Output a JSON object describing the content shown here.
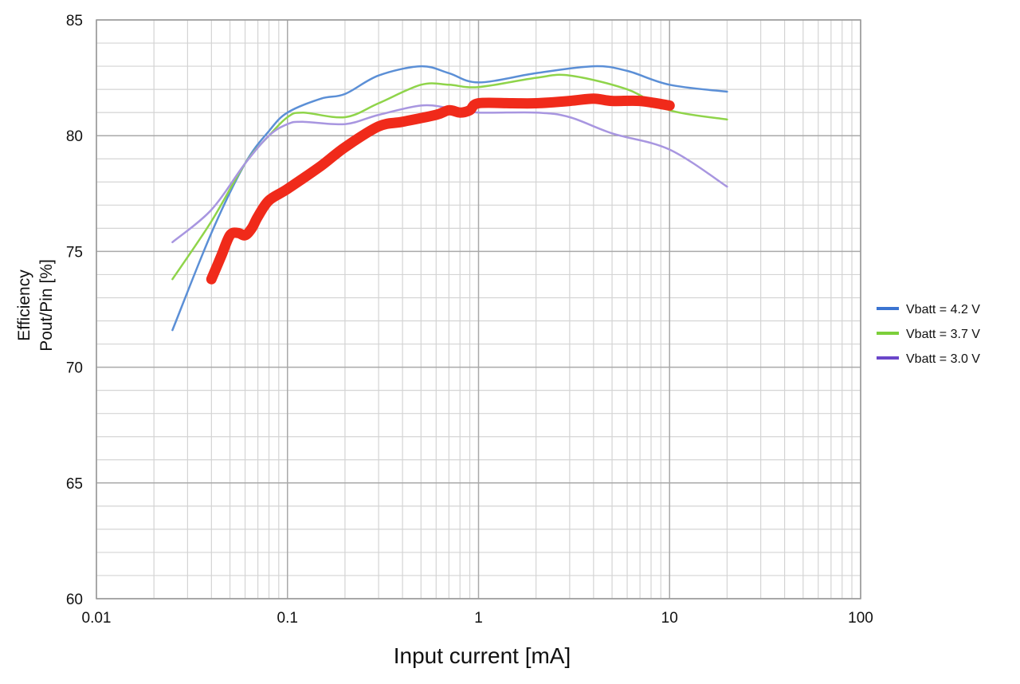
{
  "chart_data": {
    "type": "line",
    "xlabel": "Input current [mA]",
    "ylabel_lines": [
      "Efficiency",
      "Pout/Pin [%]"
    ],
    "xscale": "log",
    "xlim": [
      0.01,
      100
    ],
    "ylim": [
      60,
      85
    ],
    "grid": true,
    "legend_placement": "right",
    "x_ticks": [
      {
        "value": 0.01,
        "label": "0.01"
      },
      {
        "value": 0.1,
        "label": "0.1"
      },
      {
        "value": 1,
        "label": "1"
      },
      {
        "value": 10,
        "label": "10"
      },
      {
        "value": 100,
        "label": "100"
      }
    ],
    "y_ticks": [
      {
        "value": 60,
        "label": "60"
      },
      {
        "value": 65,
        "label": "65"
      },
      {
        "value": 70,
        "label": "70"
      },
      {
        "value": 75,
        "label": "75"
      },
      {
        "value": 80,
        "label": "80"
      },
      {
        "value": 85,
        "label": "85"
      }
    ],
    "series": [
      {
        "name": "Vbatt = 4.2 V",
        "color": "#5b8fd6",
        "legend_color": "#3b74d1",
        "x": [
          0.025,
          0.04,
          0.06,
          0.08,
          0.1,
          0.15,
          0.2,
          0.3,
          0.5,
          0.7,
          1,
          2,
          4,
          6,
          10,
          20
        ],
        "y": [
          71.6,
          75.8,
          78.8,
          80.2,
          81.0,
          81.6,
          81.8,
          82.6,
          83.0,
          82.7,
          82.3,
          82.7,
          83.0,
          82.8,
          82.2,
          81.9
        ]
      },
      {
        "name": "Vbatt = 3.7 V",
        "color": "#8fd44a",
        "legend_color": "#7ccf3a",
        "x": [
          0.025,
          0.04,
          0.06,
          0.08,
          0.1,
          0.12,
          0.2,
          0.3,
          0.5,
          0.7,
          1,
          2,
          3,
          6,
          10,
          20
        ],
        "y": [
          73.8,
          76.3,
          78.8,
          80.0,
          80.8,
          81.0,
          80.8,
          81.4,
          82.2,
          82.2,
          82.1,
          82.5,
          82.6,
          82.0,
          81.1,
          80.7
        ]
      },
      {
        "name": "Vbatt = 3.0 V",
        "color": "#a896e0",
        "legend_color": "#6a46c9",
        "x": [
          0.025,
          0.04,
          0.06,
          0.08,
          0.1,
          0.12,
          0.2,
          0.3,
          0.5,
          0.7,
          1,
          2,
          3,
          5,
          10,
          20
        ],
        "y": [
          75.4,
          76.8,
          78.8,
          80.0,
          80.5,
          80.6,
          80.5,
          80.9,
          81.3,
          81.2,
          81.0,
          81.0,
          80.8,
          80.1,
          79.4,
          77.8
        ]
      },
      {
        "color": "#f02a1a",
        "x": [
          0.04,
          0.045,
          0.05,
          0.055,
          0.06,
          0.065,
          0.07,
          0.08,
          0.1,
          0.15,
          0.2,
          0.3,
          0.4,
          0.6,
          0.7,
          0.8,
          0.9,
          1,
          1.5,
          2,
          3,
          4,
          5,
          7,
          10
        ],
        "y": [
          73.8,
          74.8,
          75.7,
          75.8,
          75.7,
          76.0,
          76.5,
          77.2,
          77.7,
          78.7,
          79.5,
          80.4,
          80.6,
          80.9,
          81.1,
          81.0,
          81.1,
          81.4,
          81.4,
          81.4,
          81.5,
          81.6,
          81.5,
          81.5,
          81.3
        ]
      }
    ]
  }
}
